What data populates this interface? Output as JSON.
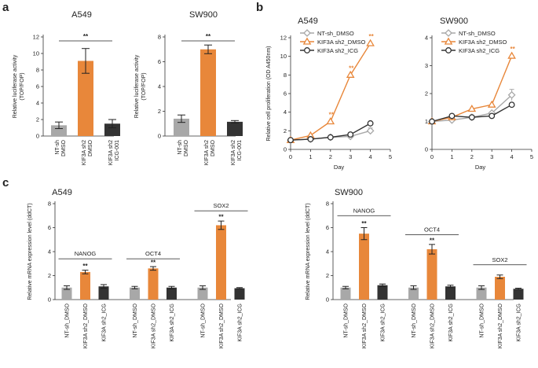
{
  "panel_labels": [
    "a",
    "b",
    "c"
  ],
  "colors": {
    "gray": "#a8a8a8",
    "orange": "#e8873a",
    "dark": "#333333",
    "axis": "#333333",
    "sig_orange": "#e8873a",
    "sig_black": "#222222"
  },
  "chart_data": [
    {
      "id": "a1",
      "type": "bar",
      "title": "A549",
      "ylabel": "Relative luciferase activity (TOP/FOP)",
      "ylim": [
        0,
        12
      ],
      "yticks": [
        0,
        2,
        4,
        6,
        8,
        10,
        12
      ],
      "categories": [
        "NT-sh DMSO",
        "KIF3A sh2 DMSO",
        "KIF3A sh2 ICG-001"
      ],
      "category_lines": [
        [
          "NT-sh",
          "DMSO"
        ],
        [
          "KIF3A sh2",
          "DMSO"
        ],
        [
          "KIF3A sh2",
          "ICG-001"
        ]
      ],
      "values": [
        1.3,
        9.1,
        1.5
      ],
      "errors": [
        0.4,
        1.5,
        0.5
      ],
      "colors": [
        "gray",
        "orange",
        "dark"
      ],
      "significance": {
        "from": 0,
        "to": 2,
        "label": "**"
      }
    },
    {
      "id": "a2",
      "type": "bar",
      "title": "SW900",
      "ylabel": "Relative luciferase activity (TOP/FOP)",
      "ylim": [
        0,
        8
      ],
      "yticks": [
        0,
        2,
        4,
        6,
        8
      ],
      "categories": [
        "NT-sh DMSO",
        "KIF3A sh2 DMSO",
        "KIF3A sh2 ICG-001"
      ],
      "category_lines": [
        [
          "NT-sh",
          "DMSO"
        ],
        [
          "KIF3A sh2",
          "DMSO"
        ],
        [
          "KIF3A sh2",
          "ICG-001"
        ]
      ],
      "values": [
        1.4,
        7.0,
        1.15
      ],
      "errors": [
        0.3,
        0.35,
        0.1
      ],
      "colors": [
        "gray",
        "orange",
        "dark"
      ],
      "significance": {
        "from": 0,
        "to": 2,
        "label": "**"
      }
    },
    {
      "id": "b1",
      "type": "line",
      "title": "A549",
      "ylabel": "Relative cell proliferation (OD A450nm)",
      "xlabel": "Day",
      "xlim": [
        0,
        5
      ],
      "ylim": [
        0,
        12
      ],
      "xticks": [
        0,
        1,
        2,
        3,
        4,
        5
      ],
      "yticks": [
        0,
        2,
        4,
        6,
        8,
        10,
        12
      ],
      "x": [
        0,
        1,
        2,
        3,
        4
      ],
      "series": [
        {
          "name": "NT-sh_DMSO",
          "marker": "diamond",
          "color": "gray",
          "values": [
            1.0,
            1.1,
            1.3,
            1.4,
            2.0
          ],
          "errors": [
            0,
            0,
            0,
            0,
            0.3
          ],
          "sig": [
            "",
            "",
            "",
            "",
            ""
          ]
        },
        {
          "name": "KIF3A sh2_DMSO",
          "marker": "triangle",
          "color": "orange",
          "values": [
            1.0,
            1.5,
            3.0,
            8.0,
            11.4
          ],
          "errors": [
            0,
            0,
            0,
            0,
            0
          ],
          "sig": [
            "",
            "",
            "**",
            "**",
            "**"
          ]
        },
        {
          "name": "KIF3A sh2_ICG",
          "marker": "circle",
          "color": "dark",
          "values": [
            1.0,
            1.1,
            1.3,
            1.6,
            2.8
          ],
          "errors": [
            0,
            0,
            0,
            0,
            0
          ],
          "sig": [
            "",
            "",
            "",
            "",
            ""
          ]
        }
      ],
      "legend": "top-left"
    },
    {
      "id": "b2",
      "type": "line",
      "title": "SW900",
      "ylabel": "",
      "xlabel": "Day",
      "xlim": [
        0,
        5
      ],
      "ylim": [
        0,
        4
      ],
      "xticks": [
        0,
        1,
        2,
        3,
        4,
        5
      ],
      "yticks": [
        0,
        1,
        2,
        3,
        4
      ],
      "x": [
        0,
        1,
        2,
        3,
        4
      ],
      "series": [
        {
          "name": "NT-sh_DMSO",
          "marker": "diamond",
          "color": "gray",
          "values": [
            1.0,
            1.05,
            1.15,
            1.3,
            1.95
          ],
          "errors": [
            0,
            0,
            0,
            0,
            0.2
          ],
          "sig": [
            "",
            "",
            "",
            "",
            ""
          ]
        },
        {
          "name": "KIF3A sh2_DMSO",
          "marker": "triangle",
          "color": "orange",
          "values": [
            1.0,
            1.15,
            1.45,
            1.6,
            3.35
          ],
          "errors": [
            0,
            0,
            0,
            0,
            0
          ],
          "sig": [
            "",
            "",
            "",
            "",
            "**"
          ]
        },
        {
          "name": "KIF3A sh2_ICG",
          "marker": "circle",
          "color": "dark",
          "values": [
            1.0,
            1.2,
            1.15,
            1.2,
            1.6
          ],
          "errors": [
            0,
            0,
            0,
            0,
            0
          ],
          "sig": [
            "",
            "",
            "",
            "",
            ""
          ]
        }
      ],
      "legend": "top-left"
    },
    {
      "id": "c1",
      "type": "bar",
      "title": "A549",
      "ylabel": "Relative mRNA expression level (ddCT)",
      "ylim": [
        0,
        8
      ],
      "yticks": [
        0,
        2,
        4,
        6,
        8
      ],
      "categories": [
        "NT-sh_DMSO",
        "KIF3A sh2_DMSO",
        "KIF3A sh2_ICG",
        "NT-sh_DMSO",
        "KIF3A sh2_DMSO",
        "KIF3A sh2_ICG",
        "NT-sh_DMSO",
        "KIF3A sh2_DMSO",
        "KIF3A sh2_ICG"
      ],
      "groups": [
        {
          "name": "NANOG",
          "values": [
            1.0,
            2.3,
            1.1
          ],
          "errors": [
            0.15,
            0.15,
            0.15
          ],
          "sig": [
            "",
            "**",
            ""
          ],
          "label_level": 3.4
        },
        {
          "name": "OCT4",
          "values": [
            1.0,
            2.6,
            1.0
          ],
          "errors": [
            0.1,
            0.15,
            0.1
          ],
          "sig": [
            "",
            "**",
            ""
          ],
          "label_level": 3.4
        },
        {
          "name": "SOX2",
          "values": [
            1.0,
            6.2,
            0.95
          ],
          "errors": [
            0.15,
            0.35,
            0.05
          ],
          "sig": [
            "",
            "**",
            ""
          ],
          "label_level": 7.4
        }
      ],
      "colors": [
        "gray",
        "orange",
        "dark"
      ]
    },
    {
      "id": "c2",
      "type": "bar",
      "title": "SW900",
      "ylabel": "Relative mRNA expression level (ddCT)",
      "ylim": [
        0,
        8
      ],
      "yticks": [
        0,
        2,
        4,
        6,
        8
      ],
      "categories": [
        "NT-sh_DMSO",
        "KIF3A sh2_DMSO",
        "KIF3A sh2_ICG",
        "NT-sh_DMSO",
        "KIF3A sh2_DMSO",
        "KIF3A sh2_ICG",
        "NT-sh_DMSO",
        "KIF3A sh2_DMSO",
        "KIF3A sh2_ICG"
      ],
      "groups": [
        {
          "name": "NANOG",
          "values": [
            1.0,
            5.5,
            1.2
          ],
          "errors": [
            0.1,
            0.5,
            0.1
          ],
          "sig": [
            "",
            "**",
            ""
          ],
          "label_level": 7.0
        },
        {
          "name": "OCT4",
          "values": [
            1.0,
            4.2,
            1.1
          ],
          "errors": [
            0.15,
            0.4,
            0.1
          ],
          "sig": [
            "",
            "**",
            ""
          ],
          "label_level": 5.4
        },
        {
          "name": "SOX2",
          "values": [
            1.0,
            1.9,
            0.9
          ],
          "errors": [
            0.15,
            0.15,
            0.05
          ],
          "sig": [
            "",
            "",
            ""
          ],
          "label_level": 2.9
        }
      ],
      "colors": [
        "gray",
        "orange",
        "dark"
      ]
    }
  ]
}
